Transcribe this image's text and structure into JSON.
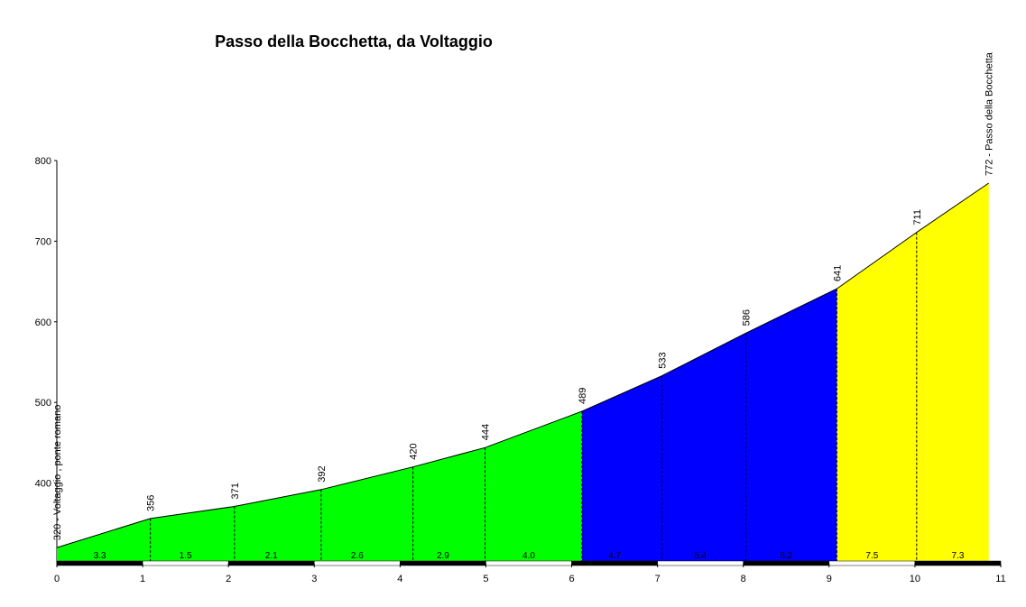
{
  "chart_data": {
    "type": "elevation-profile",
    "title": "Passo della Bocchetta, da Voltaggio",
    "start_label": "320 - Voltaggio , ponte romano",
    "end_label": "772 - Passo della Bocchetta",
    "xlim": [
      0,
      11
    ],
    "xticks": [
      0,
      1,
      2,
      3,
      4,
      5,
      6,
      7,
      8,
      9,
      10,
      11
    ],
    "ylim": [
      300,
      800
    ],
    "yticks": [
      400,
      500,
      600,
      700,
      800
    ],
    "series": [
      {
        "color": "#00ff00",
        "x": [
          0,
          1.09,
          2.07,
          3.08,
          4.15,
          4.99,
          6.12
        ],
        "values": [
          320,
          356,
          371,
          392,
          420,
          444,
          489
        ]
      },
      {
        "color": "#0000ff",
        "x": [
          6.12,
          7.05,
          8.03,
          9.09
        ],
        "values": [
          489,
          533,
          586,
          641
        ]
      },
      {
        "color": "#ffff00",
        "x": [
          9.09,
          10.02,
          10.86
        ],
        "values": [
          641,
          711,
          772
        ]
      }
    ],
    "gradients": [
      3.3,
      1.5,
      2.1,
      2.6,
      2.9,
      4.0,
      4.7,
      5.4,
      5.2,
      7.5,
      7.3
    ],
    "gradient_labels": [
      "3.3",
      "1.5",
      "2.1",
      "2.6",
      "2.9",
      "4.0",
      "4.7",
      "5.4",
      "5.2",
      "7.5",
      "7.3"
    ]
  }
}
